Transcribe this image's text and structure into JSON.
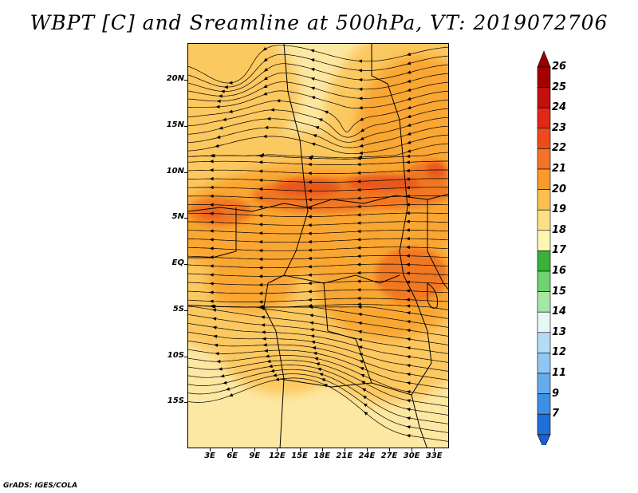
{
  "title": "WBPT [C] and Sreamline at 500hPa, VT: 2019072706",
  "credit": "GrADS: IGES/COLA",
  "map": {
    "lon_range": [
      0,
      35
    ],
    "lat_range": [
      -20,
      24
    ],
    "lon_ticks": [
      {
        "value": 3,
        "label": "3E"
      },
      {
        "value": 6,
        "label": "6E"
      },
      {
        "value": 9,
        "label": "9E"
      },
      {
        "value": 12,
        "label": "12E"
      },
      {
        "value": 15,
        "label": "15E"
      },
      {
        "value": 18,
        "label": "18E"
      },
      {
        "value": 21,
        "label": "21E"
      },
      {
        "value": 24,
        "label": "24E"
      },
      {
        "value": 27,
        "label": "27E"
      },
      {
        "value": 30,
        "label": "30E"
      },
      {
        "value": 33,
        "label": "33E"
      }
    ],
    "lat_ticks": [
      {
        "value": 20,
        "label": "20N"
      },
      {
        "value": 15,
        "label": "15N"
      },
      {
        "value": 10,
        "label": "10N"
      },
      {
        "value": 5,
        "label": "5N"
      },
      {
        "value": 0,
        "label": "EQ"
      },
      {
        "value": -5,
        "label": "5S"
      },
      {
        "value": -10,
        "label": "10S"
      },
      {
        "value": -15,
        "label": "15S"
      }
    ],
    "field_color_light": "#fde8a3",
    "field_color_mid": "#fcc860",
    "field_color_warm": "#f9a632",
    "field_color_hot": "#f07820",
    "field_color_peak": "#e8561a"
  },
  "colorbar": {
    "levels": [
      {
        "label": "26",
        "color": "#a50000"
      },
      {
        "label": "25",
        "color": "#c40f0f"
      },
      {
        "label": "24",
        "color": "#e02718"
      },
      {
        "label": "23",
        "color": "#ee4a1d"
      },
      {
        "label": "22",
        "color": "#f27424"
      },
      {
        "label": "21",
        "color": "#f79b2b"
      },
      {
        "label": "20",
        "color": "#fbbf50"
      },
      {
        "label": "19",
        "color": "#fde084"
      },
      {
        "label": "18",
        "color": "#fff5b5"
      },
      {
        "label": "17",
        "color": "#37b33a"
      },
      {
        "label": "16",
        "color": "#6fd16f"
      },
      {
        "label": "15",
        "color": "#a8e6a3"
      },
      {
        "label": "14",
        "color": "#e6f8f5"
      },
      {
        "label": "13",
        "color": "#b5dcf6"
      },
      {
        "label": "12",
        "color": "#8fc7f2"
      },
      {
        "label": "11",
        "color": "#64adec"
      },
      {
        "label": "9",
        "color": "#3d8fe3"
      },
      {
        "label": "7",
        "color": "#1f6fd8"
      }
    ],
    "top_arrow_color": "#9a0000",
    "bottom_arrow_color": "#1d5fd0"
  }
}
